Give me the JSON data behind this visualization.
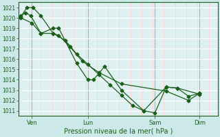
{
  "bg_color": "#cce8e8",
  "plot_bg_color": "#dff0f0",
  "grid_color_h": "#ffffff",
  "grid_color_v": "#ffcccc",
  "line_color": "#1a5e1a",
  "marker_color": "#1a5e1a",
  "ylim": [
    1010.5,
    1021.5
  ],
  "yticks": [
    1011,
    1012,
    1013,
    1014,
    1015,
    1016,
    1017,
    1018,
    1019,
    1020,
    1021
  ],
  "xlabel": "Pression niveau de la mer( hPa )",
  "xlabel_color": "#1a5e1a",
  "xtick_labels": [
    "Ven",
    "Lun",
    "Sam",
    "Dim"
  ],
  "xtick_positions": [
    0.5,
    3.0,
    6.0,
    8.0
  ],
  "xlim": [
    -0.1,
    8.8
  ],
  "line1_y": [
    1020.2,
    1020.5,
    1020.2,
    1018.5,
    1019.0,
    1019.0,
    1015.6,
    1014.0,
    1014.0,
    1015.3,
    1013.0,
    1011.0,
    1013.3,
    1013.2,
    1012.4,
    1012.7
  ],
  "line1_x": [
    0.0,
    0.22,
    0.45,
    0.9,
    1.45,
    1.7,
    2.5,
    3.0,
    3.25,
    3.75,
    4.5,
    5.5,
    6.5,
    7.0,
    7.5,
    8.0
  ],
  "line2_y": [
    1020.1,
    1021.0,
    1021.0,
    1020.2,
    1018.5,
    1018.3,
    1017.2,
    1015.8,
    1014.7,
    1013.6,
    1012.9,
    1012.0,
    1012.7
  ],
  "line2_x": [
    0.0,
    0.28,
    0.55,
    0.9,
    1.45,
    1.7,
    2.2,
    2.75,
    3.5,
    4.5,
    6.5,
    7.5,
    8.0
  ],
  "line3_y": [
    1020.0,
    1019.5,
    1018.5,
    1018.5,
    1017.8,
    1016.5,
    1015.5,
    1014.5,
    1013.5,
    1012.5,
    1011.5,
    1011.0,
    1010.8,
    1013.3,
    1013.2,
    1012.6
  ],
  "line3_x": [
    0.0,
    0.5,
    0.9,
    1.45,
    2.0,
    2.5,
    3.0,
    3.5,
    4.0,
    4.5,
    5.0,
    5.5,
    6.0,
    6.5,
    7.0,
    8.0
  ],
  "vlines": [
    0.5,
    3.0,
    6.0,
    8.0
  ],
  "vline_color": "#aaaaaa"
}
